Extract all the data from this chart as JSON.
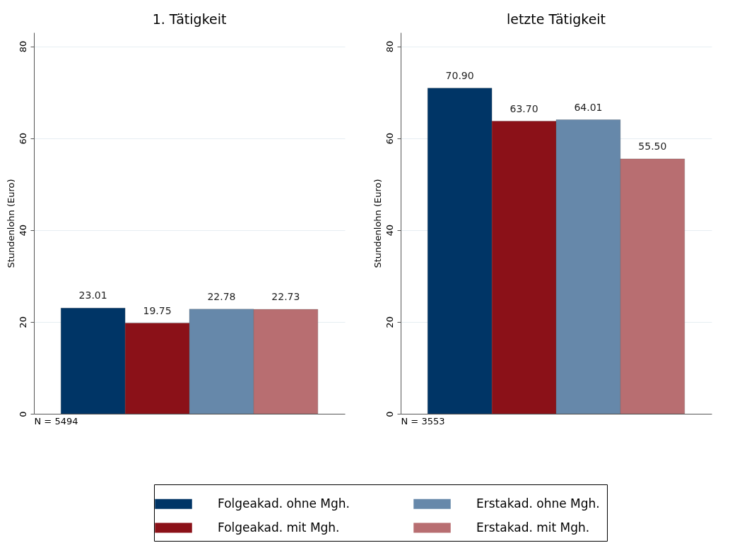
{
  "chart_data": [
    {
      "type": "bar",
      "title": "1. Tätigkeit",
      "ylabel": "Stundenlohn (Euro)",
      "categories": [
        null
      ],
      "ylim": [
        0,
        83
      ],
      "yticks": [
        0,
        20,
        40,
        60,
        80
      ],
      "grid": "y",
      "legend": "bottom",
      "data_labels": true,
      "annotations": [
        "N = 5494"
      ],
      "series": [
        {
          "name": "Folgeakad. ohne Mgh.",
          "color": "#003566",
          "values": [
            23.01
          ]
        },
        {
          "name": "Folgeakad. mit Mgh.",
          "color": "#8b1118",
          "values": [
            19.75
          ]
        },
        {
          "name": "Erstakad. ohne Mgh.",
          "color": "#6688aa",
          "values": [
            22.78
          ]
        },
        {
          "name": "Erstakad. mit Mgh.",
          "color": "#b86e71",
          "values": [
            22.73
          ]
        }
      ]
    },
    {
      "type": "bar",
      "title": "letzte Tätigkeit",
      "ylabel": "Stundenlohn (Euro)",
      "categories": [
        null
      ],
      "ylim": [
        0,
        83
      ],
      "yticks": [
        0,
        20,
        40,
        60,
        80
      ],
      "grid": "y",
      "legend": "bottom",
      "annotations": [
        "N = 3553"
      ],
      "series": [
        {
          "name": "Folgeakad. ohne Mgh.",
          "color": "#003566",
          "values": [
            70.9
          ],
          "value_labels": [
            "70.90"
          ]
        },
        {
          "name": "Folgeakad. mit Mgh.",
          "color": "#8b1118",
          "values": [
            63.7
          ],
          "value_labels": [
            "63.70"
          ]
        },
        {
          "name": "Erstakad. ohne Mgh.",
          "color": "#6688aa",
          "values": [
            64.01
          ],
          "value_labels": [
            "64.01"
          ]
        },
        {
          "name": "Erstakad. mit Mgh.",
          "color": "#b86e71",
          "values": [
            55.5
          ],
          "value_labels": [
            "55.50"
          ]
        }
      ]
    }
  ]
}
